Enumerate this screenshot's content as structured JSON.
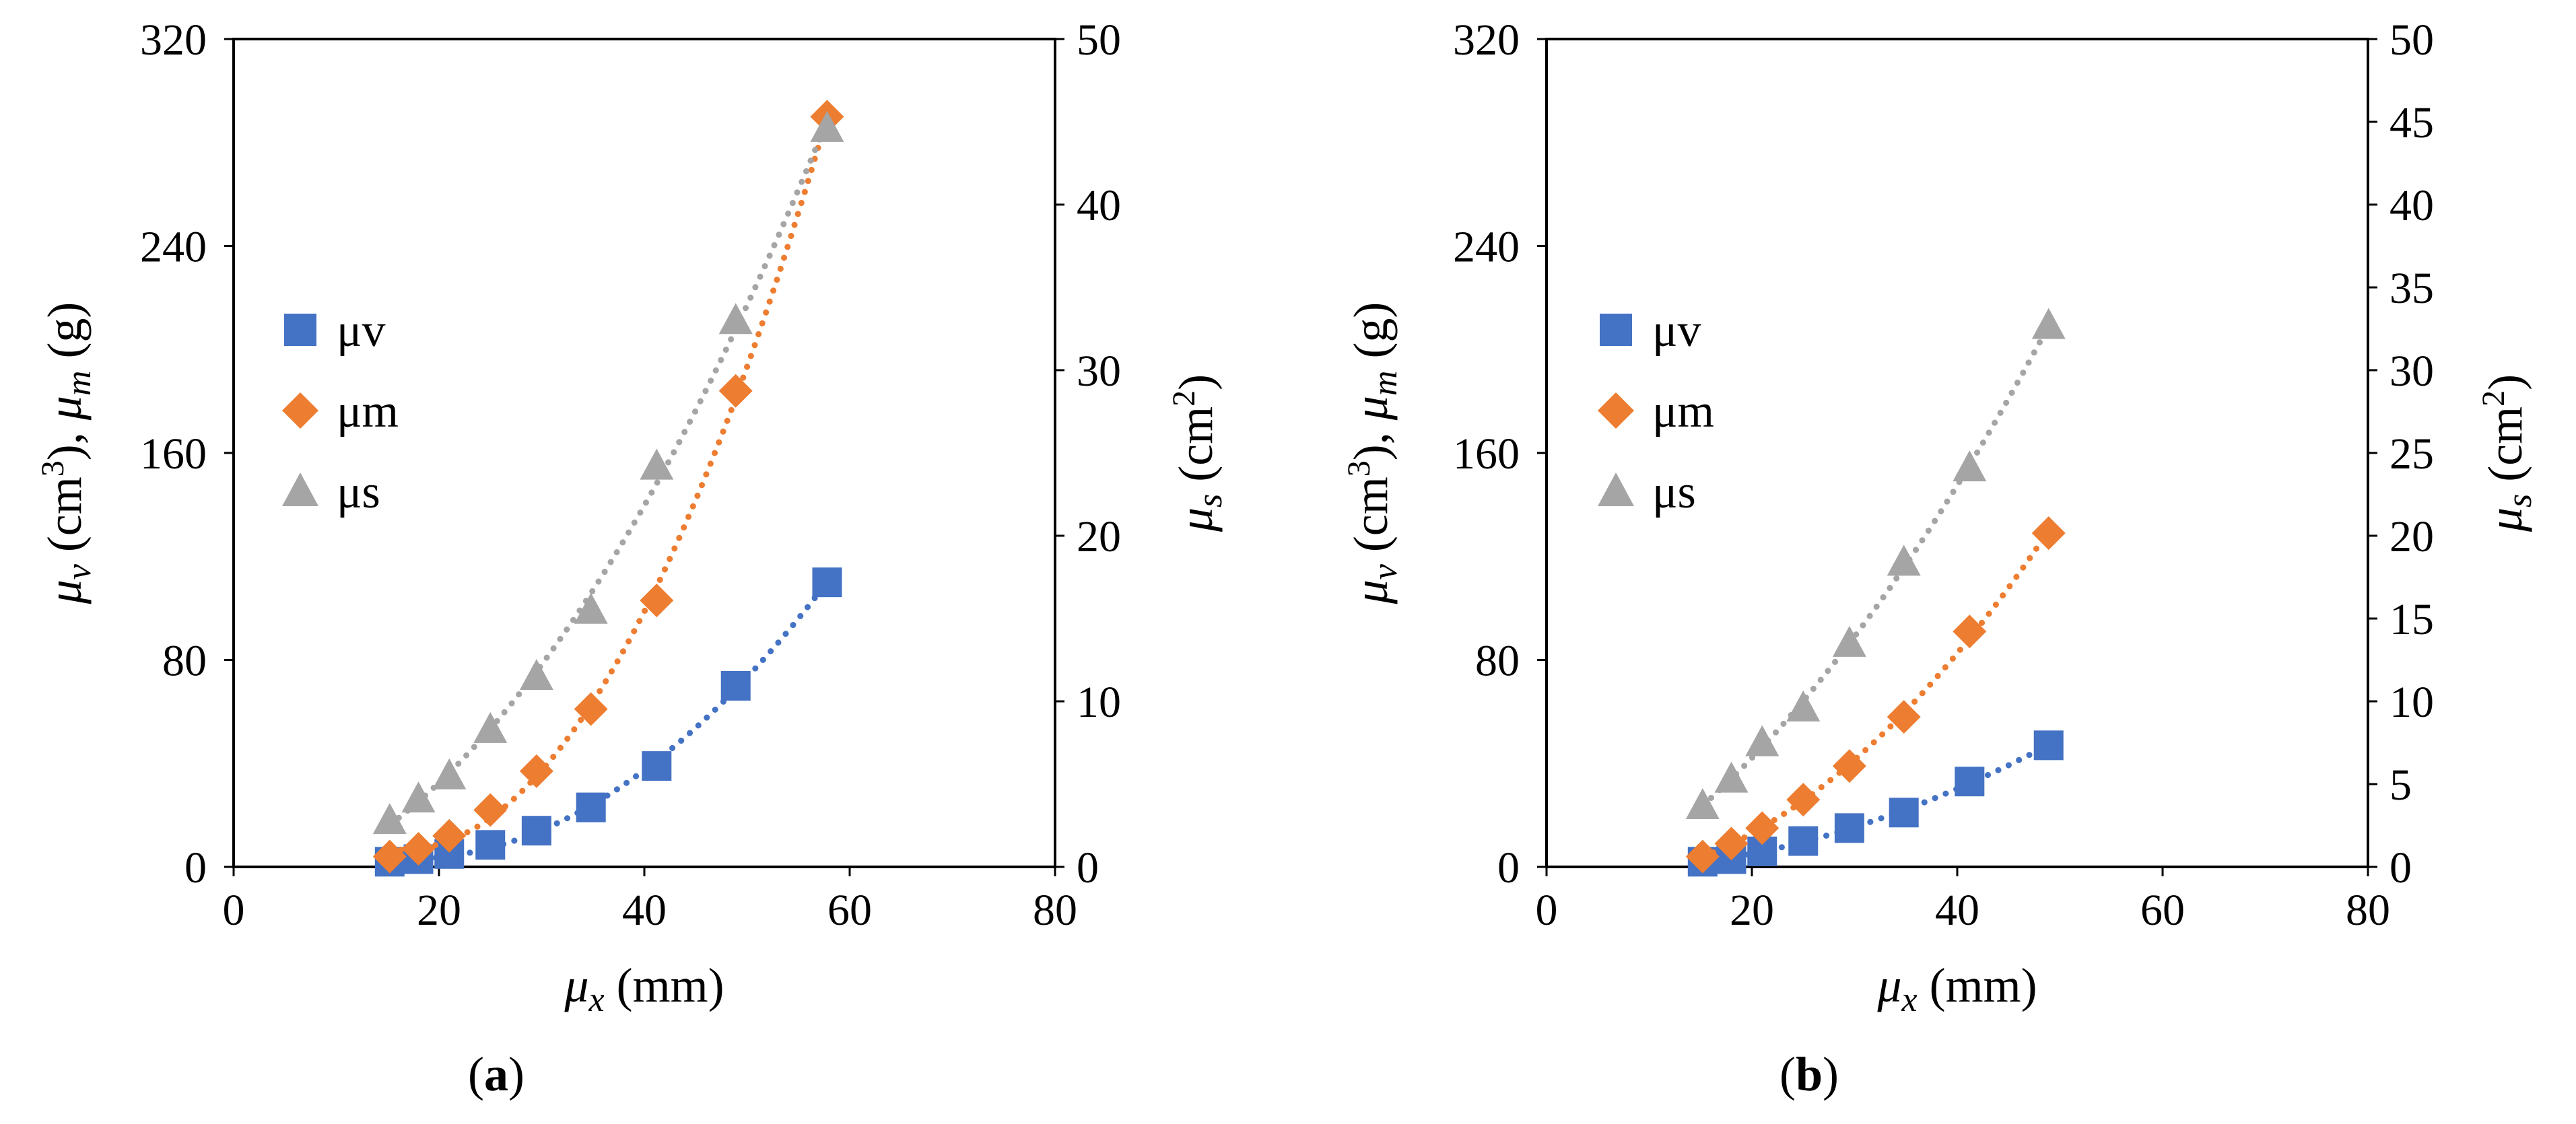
{
  "figure": {
    "panel_labels": [
      "a",
      "b"
    ]
  },
  "colors": {
    "uv": "#4472C4",
    "um": "#ED7D31",
    "us": "#A5A5A5",
    "axis": "#000000"
  },
  "chart_data": [
    {
      "type": "scatter",
      "panel": "a",
      "xlabel": "μx (mm)",
      "ylabel_left": "μv (cm3), μm (g)",
      "ylabel_right": "μs (cm2)",
      "xlim": [
        0,
        80
      ],
      "xticks": [
        0,
        20,
        40,
        60,
        80
      ],
      "ylim_left": [
        0,
        320
      ],
      "yticks_left": [
        0,
        80,
        160,
        240,
        320
      ],
      "ylim_right": [
        0,
        50
      ],
      "yticks_right": [
        0,
        10,
        20,
        30,
        40,
        50
      ],
      "legend": [
        "μv",
        "μm",
        "μs"
      ],
      "series": [
        {
          "name": "μv",
          "axis": "left",
          "marker": "square",
          "color": "#4472C4",
          "x": [
            15.2,
            18,
            21,
            25,
            29.5,
            34.8,
            41.2,
            48.9,
            57.8
          ],
          "y": [
            2,
            3,
            5,
            8.5,
            14,
            23,
            39,
            70,
            110
          ]
        },
        {
          "name": "μm",
          "axis": "left",
          "marker": "diamond",
          "color": "#ED7D31",
          "x": [
            15.2,
            18,
            21,
            25,
            29.5,
            34.8,
            41.2,
            48.9,
            57.8
          ],
          "y": [
            4,
            7,
            12,
            22,
            37,
            61,
            103,
            184,
            290
          ]
        },
        {
          "name": "μs",
          "axis": "right",
          "marker": "triangle",
          "color": "#A5A5A5",
          "x": [
            15.2,
            18,
            21,
            25,
            29.5,
            34.8,
            41.2,
            48.9,
            57.8
          ],
          "y": [
            2.8,
            4.1,
            5.5,
            8.3,
            11.5,
            15.5,
            24.2,
            33,
            44.6
          ]
        }
      ]
    },
    {
      "type": "scatter",
      "panel": "b",
      "xlabel": "μx (mm)",
      "ylabel_left": "μv (cm3), μm (g)",
      "ylabel_right": "μs (cm2)",
      "xlim": [
        0,
        80
      ],
      "xticks": [
        0,
        20,
        40,
        60,
        80
      ],
      "ylim_left": [
        0,
        320
      ],
      "yticks_left": [
        0,
        80,
        160,
        240,
        320
      ],
      "ylim_right": [
        0,
        50
      ],
      "yticks_right": [
        0,
        5,
        10,
        15,
        20,
        25,
        30,
        35,
        40,
        45,
        50
      ],
      "legend": [
        "μv",
        "μm",
        "μs"
      ],
      "series": [
        {
          "name": "μv",
          "axis": "left",
          "marker": "square",
          "color": "#4472C4",
          "x": [
            15.2,
            18,
            21,
            25,
            29.5,
            34.8,
            41.2,
            48.9
          ],
          "y": [
            2,
            3,
            6,
            10,
            15,
            21,
            33,
            47
          ]
        },
        {
          "name": "μm",
          "axis": "left",
          "marker": "diamond",
          "color": "#ED7D31",
          "x": [
            15.2,
            18,
            21,
            25,
            29.5,
            34.8,
            41.2,
            48.9
          ],
          "y": [
            4,
            9,
            15,
            26,
            39,
            58,
            91,
            129
          ]
        },
        {
          "name": "μs",
          "axis": "right",
          "marker": "triangle",
          "color": "#A5A5A5",
          "x": [
            15.2,
            18,
            21,
            25,
            29.5,
            34.8,
            41.2,
            48.9
          ],
          "y": [
            3.7,
            5.3,
            7.5,
            9.6,
            13.5,
            18.4,
            24.1,
            32.7
          ]
        }
      ]
    }
  ]
}
